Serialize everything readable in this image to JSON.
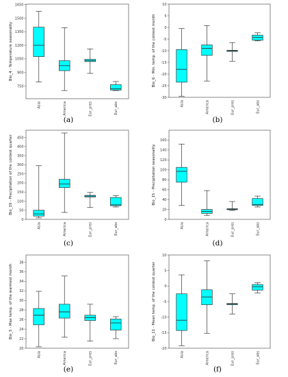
{
  "chart_data": [
    {
      "type": "boxplot",
      "panel_label": "(a)",
      "ylabel": "Bio_4 - Temperature seasonality",
      "categories": [
        "Asia",
        "America",
        "Eur_pres",
        "Eur_abs"
      ],
      "yticks": [
        750,
        900,
        1050,
        1200,
        1350,
        1500,
        1650
      ],
      "ylim": [
        610,
        1655
      ],
      "boxes": [
        {
          "min": 795,
          "q1": 1075,
          "median": 1200,
          "q3": 1400,
          "max": 1575
        },
        {
          "min": 700,
          "q1": 920,
          "median": 975,
          "q3": 1030,
          "max": 1395
        },
        {
          "min": 890,
          "q1": 1020,
          "median": 1032,
          "q3": 1045,
          "max": 1160
        },
        {
          "min": 700,
          "q1": 705,
          "median": 720,
          "q3": 765,
          "max": 800
        }
      ],
      "colors": {
        "box": "#00ffff",
        "edge": "#333333"
      }
    },
    {
      "type": "boxplot",
      "panel_label": "(b)",
      "ylabel": "Bio_6 - Min. temp. of the coldest month",
      "categories": [
        "Asia",
        "America",
        "Eur_pres",
        "Eur_abs"
      ],
      "yticks": [
        -30,
        -25,
        -20,
        -15,
        -10,
        -5,
        0,
        5,
        10
      ],
      "ylim": [
        -30,
        10
      ],
      "boxes": [
        {
          "min": -29.5,
          "q1": -23.5,
          "median": -18,
          "q3": -9.5,
          "max": -0.5
        },
        {
          "min": -23,
          "q1": -12,
          "median": -9,
          "q3": -7.5,
          "max": 0.8
        },
        {
          "min": -14.5,
          "q1": -10.3,
          "median": -10,
          "q3": -9.8,
          "max": -6.5
        },
        {
          "min": -5.8,
          "q1": -5.5,
          "median": -4.3,
          "q3": -3.3,
          "max": -2.3
        }
      ],
      "colors": {
        "box": "#00ffff",
        "edge": "#333333"
      }
    },
    {
      "type": "boxplot",
      "panel_label": "(c)",
      "ylabel": "Bio_19 - Precipitation of the coldest quarter",
      "categories": [
        "Asia",
        "America",
        "Eur_pres",
        "Eur_abs"
      ],
      "yticks": [
        0,
        50,
        100,
        150,
        200,
        250,
        300,
        350,
        400,
        450
      ],
      "ylim": [
        0,
        490
      ],
      "boxes": [
        {
          "min": 8,
          "q1": 18,
          "median": 30,
          "q3": 50,
          "max": 295
        },
        {
          "min": 38,
          "q1": 175,
          "median": 195,
          "q3": 220,
          "max": 475
        },
        {
          "min": 65,
          "q1": 123,
          "median": 128,
          "q3": 132,
          "max": 148
        },
        {
          "min": 68,
          "q1": 75,
          "median": 80,
          "q3": 120,
          "max": 130
        }
      ],
      "colors": {
        "box": "#00ffff",
        "edge": "#333333"
      }
    },
    {
      "type": "boxplot",
      "panel_label": "(d)",
      "ylabel": "Bio_15 - Precipitation seasonality",
      "categories": [
        "Asia",
        "America",
        "Eur_pres",
        "Eur_abs"
      ],
      "yticks": [
        0,
        20,
        40,
        60,
        80,
        100,
        120,
        140,
        160
      ],
      "ylim": [
        0,
        180
      ],
      "boxes": [
        {
          "min": 28,
          "q1": 75,
          "median": 97,
          "q3": 105,
          "max": 152
        },
        {
          "min": 8,
          "q1": 12,
          "median": 16,
          "q3": 20,
          "max": 58
        },
        {
          "min": 18,
          "q1": 19.5,
          "median": 20.5,
          "q3": 21.5,
          "max": 36
        },
        {
          "min": 25,
          "q1": 28,
          "median": 30,
          "q3": 42,
          "max": 47
        }
      ],
      "colors": {
        "box": "#00ffff",
        "edge": "#333333"
      }
    },
    {
      "type": "boxplot",
      "panel_label": "(e)",
      "ylabel": "Bio_5 - Max temp. of the warmest month",
      "categories": [
        "Asia",
        "America",
        "Eur_pres",
        "Eur_abs"
      ],
      "yticks": [
        20,
        22,
        24,
        26,
        28,
        30,
        32,
        34,
        36,
        38
      ],
      "ylim": [
        20,
        39.5
      ],
      "boxes": [
        {
          "min": 20.3,
          "q1": 24.9,
          "median": 26.9,
          "q3": 28.3,
          "max": 31.9
        },
        {
          "min": 22.3,
          "q1": 26.3,
          "median": 27.6,
          "q3": 29.2,
          "max": 35.1
        },
        {
          "min": 21.5,
          "q1": 25.8,
          "median": 26.4,
          "q3": 26.9,
          "max": 29.2
        },
        {
          "min": 22,
          "q1": 23.8,
          "median": 25.3,
          "q3": 26.1,
          "max": 26.6
        }
      ],
      "colors": {
        "box": "#00ffff",
        "edge": "#333333"
      }
    },
    {
      "type": "boxplot",
      "panel_label": "(f)",
      "ylabel": "Bio_11 - Mean temp. of the coldest quarter",
      "categories": [
        "Asia",
        "America",
        "Eur_pres",
        "Eur_abs"
      ],
      "yticks": [
        -20,
        -15,
        -10,
        -5,
        0,
        5,
        10
      ],
      "ylim": [
        -20,
        10
      ],
      "boxes": [
        {
          "min": -19.2,
          "q1": -14.3,
          "median": -11,
          "q3": -2.5,
          "max": 3.6
        },
        {
          "min": -15.2,
          "q1": -6,
          "median": -3.5,
          "q3": -1.2,
          "max": 8.1
        },
        {
          "min": -9,
          "q1": -6,
          "median": -5.8,
          "q3": -5.6,
          "max": -2.5
        },
        {
          "min": -2.2,
          "q1": -1.3,
          "median": -0.2,
          "q3": 0.5,
          "max": 1.1
        }
      ],
      "colors": {
        "box": "#00ffff",
        "edge": "#333333"
      }
    }
  ]
}
